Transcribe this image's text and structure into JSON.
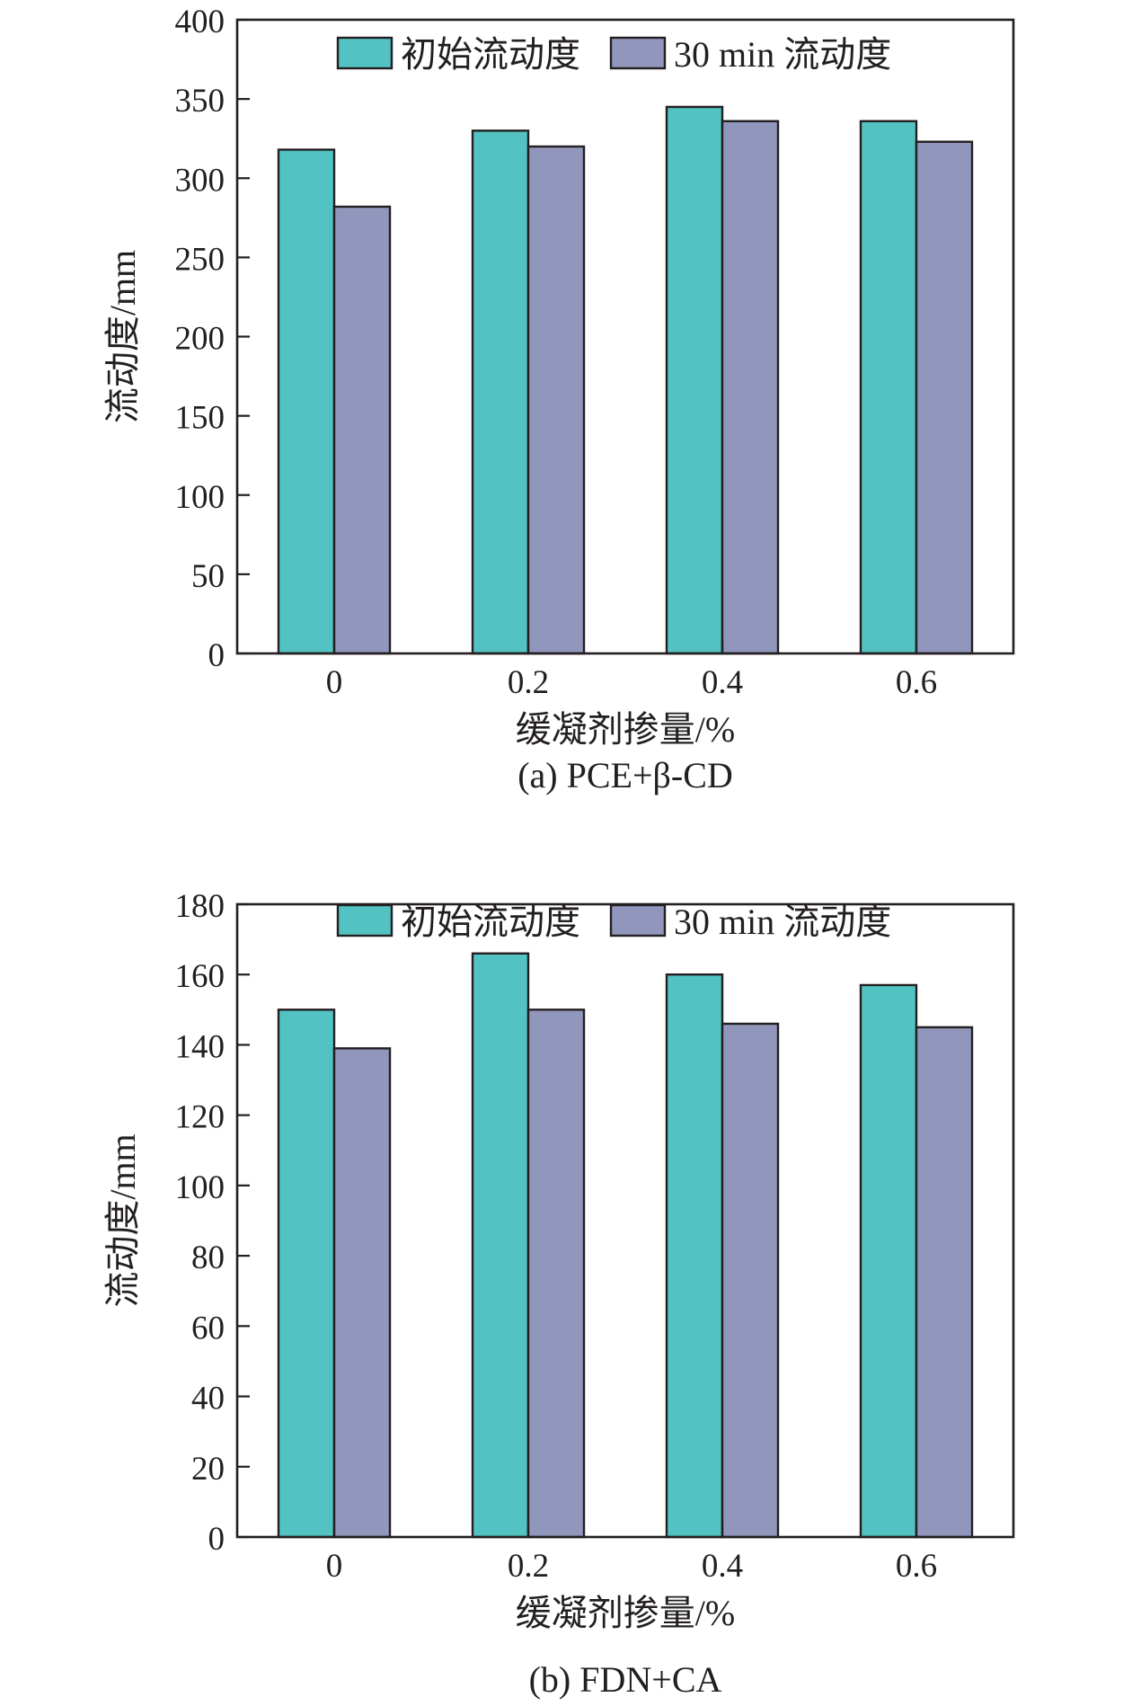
{
  "colors": {
    "initial": "#52c2c2",
    "after30": "#9197bc",
    "stroke": "#231f20"
  },
  "chart_data": [
    {
      "type": "bar",
      "caption": "(a) PCE+β-CD",
      "xlabel": "缓凝剂掺量/%",
      "ylabel": "流动度/mm",
      "categories": [
        "0",
        "0.2",
        "0.4",
        "0.6"
      ],
      "series": [
        {
          "name": "初始流动度",
          "values": [
            318,
            330,
            345,
            336
          ]
        },
        {
          "name": "30 min 流动度",
          "values": [
            282,
            320,
            336,
            323
          ]
        }
      ],
      "ylim": [
        0,
        400
      ],
      "yticks": [
        0,
        50,
        100,
        150,
        200,
        250,
        300,
        350,
        400
      ],
      "legend": "top",
      "grid": false
    },
    {
      "type": "bar",
      "caption": "(b) FDN+CA",
      "xlabel": "缓凝剂掺量/%",
      "ylabel": "流动度/mm",
      "categories": [
        "0",
        "0.2",
        "0.4",
        "0.6"
      ],
      "series": [
        {
          "name": "初始流动度",
          "values": [
            150,
            166,
            160,
            157
          ]
        },
        {
          "name": "30 min 流动度",
          "values": [
            139,
            150,
            146,
            145
          ]
        }
      ],
      "ylim": [
        0,
        180
      ],
      "yticks": [
        0,
        20,
        40,
        60,
        80,
        100,
        120,
        140,
        160,
        180
      ],
      "legend": "top",
      "grid": false
    }
  ]
}
